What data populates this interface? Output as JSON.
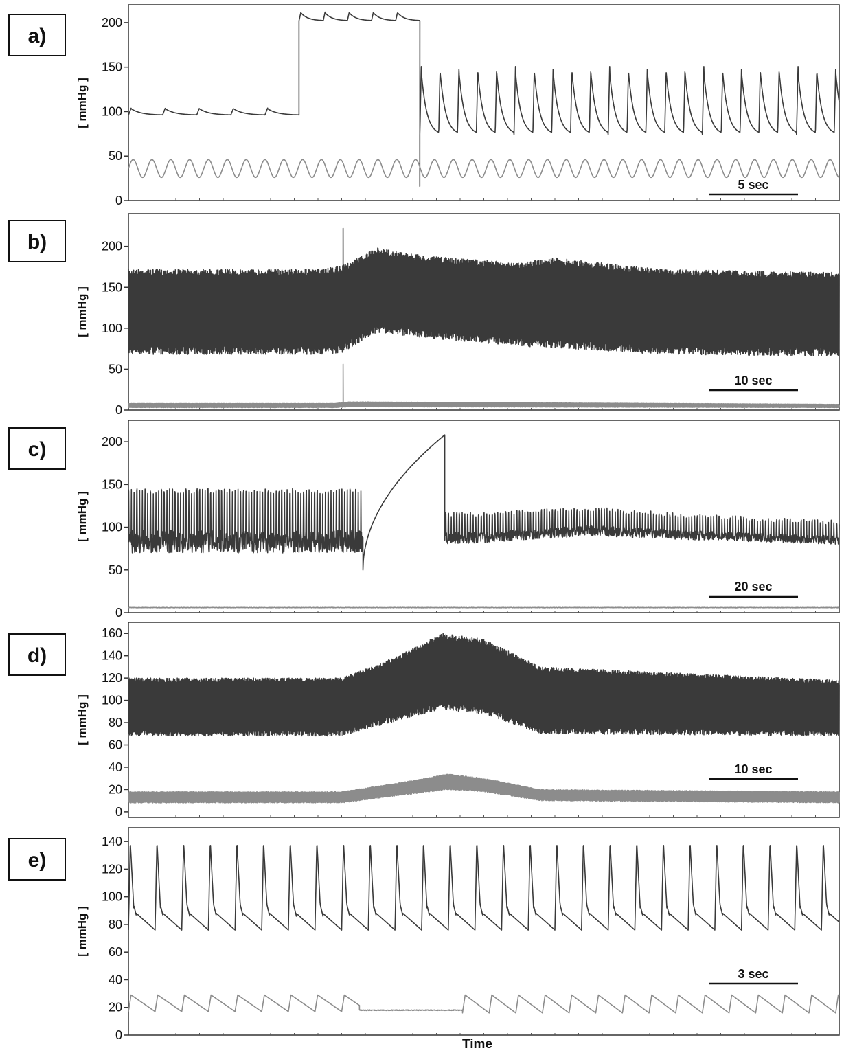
{
  "chart_data": [
    {
      "type": "line",
      "panel": "a)",
      "ylabel": "[ mmHg ]",
      "ylim": [
        0,
        220
      ],
      "yticks": [
        0,
        50,
        100,
        150,
        200
      ],
      "scale_bar": "5 sec",
      "series": [
        {
          "role": "upper",
          "color": "#3a3a3a",
          "segments": [
            {
              "kind": "pulse",
              "x": [
                0,
                0.24
              ],
              "base": 96,
              "peak": 104,
              "period": 0.048
            },
            {
              "kind": "step",
              "x": [
                0.24,
                0.41
              ],
              "base": 202,
              "peak": 212,
              "period": 0.034
            },
            {
              "kind": "drop",
              "x": 0.41,
              "min": 16
            },
            {
              "kind": "pulse",
              "x": [
                0.41,
                1.0
              ],
              "base": 74,
              "peak": 152,
              "period": 0.0265
            }
          ]
        },
        {
          "role": "lower",
          "color": "#8c8c8c",
          "segments": [
            {
              "kind": "wave",
              "x": [
                0,
                1.0
              ],
              "base": 26,
              "peak": 46,
              "period": 0.0265
            }
          ]
        }
      ]
    },
    {
      "type": "line",
      "panel": "b)",
      "ylabel": "[ mmHg ]",
      "ylim": [
        0,
        240
      ],
      "yticks": [
        0,
        50,
        100,
        150,
        200
      ],
      "scale_bar": "10 sec",
      "series": [
        {
          "role": "upper",
          "color": "#3a3a3a",
          "envelope": {
            "x": [
              0,
              0.27,
              0.3,
              0.35,
              0.42,
              0.55,
              0.6,
              0.75,
              1.0
            ],
            "top": [
              172,
              172,
              176,
              198,
              188,
              180,
              186,
              172,
              168
            ],
            "bottom": [
              68,
              68,
              70,
              95,
              88,
              78,
              76,
              68,
              66
            ]
          },
          "spike": {
            "x": 0.302,
            "max": 222
          }
        },
        {
          "role": "lower",
          "color": "#8c8c8c",
          "envelope": {
            "x": [
              0,
              0.29,
              0.31,
              1.0
            ],
            "top": [
              8,
              8,
              10,
              7
            ],
            "bottom": [
              3,
              3,
              4,
              3
            ]
          },
          "spike": {
            "x": 0.302,
            "max": 56
          }
        }
      ]
    },
    {
      "type": "line",
      "panel": "c)",
      "ylabel": "[ mmHg ]",
      "ylim": [
        0,
        225
      ],
      "yticks": [
        0,
        50,
        100,
        150,
        200
      ],
      "scale_bar": "20 sec",
      "series": [
        {
          "role": "upper",
          "color": "#3a3a3a",
          "segments": [
            {
              "kind": "band",
              "x": [
                0,
                0.33
              ],
              "top": 145,
              "bottom": 70
            },
            {
              "kind": "curve",
              "x": [
                0.33,
                0.445
              ],
              "from": 50,
              "to": 208
            },
            {
              "kind": "drop",
              "x": 0.445,
              "min": 85
            },
            {
              "kind": "band_env",
              "x": [
                0.445,
                1.0
              ],
              "env_x": [
                0.445,
                0.5,
                0.65,
                0.8,
                1.0
              ],
              "top": [
                118,
                118,
                124,
                115,
                108
              ],
              "bottom": [
                80,
                82,
                90,
                85,
                80
              ]
            }
          ]
        },
        {
          "role": "lower",
          "color": "#8c8c8c",
          "segments": [
            {
              "kind": "flat",
              "x": [
                0,
                1.0
              ],
              "value": 6
            }
          ]
        }
      ]
    },
    {
      "type": "line",
      "panel": "d)",
      "ylabel": "[ mmHg ]",
      "ylim": [
        -5,
        170
      ],
      "yticks": [
        0,
        20,
        40,
        60,
        80,
        100,
        120,
        140,
        160
      ],
      "scale_bar": "10 sec",
      "series": [
        {
          "role": "upper",
          "color": "#3a3a3a",
          "envelope": {
            "x": [
              0,
              0.3,
              0.38,
              0.44,
              0.5,
              0.58,
              1.0
            ],
            "top": [
              120,
              120,
              140,
              160,
              155,
              130,
              118
            ],
            "bottom": [
              68,
              68,
              82,
              92,
              88,
              70,
              68
            ]
          }
        },
        {
          "role": "lower",
          "color": "#8c8c8c",
          "envelope": {
            "x": [
              0,
              0.3,
              0.4,
              0.45,
              0.5,
              0.58,
              1.0
            ],
            "top": [
              18,
              18,
              28,
              34,
              30,
              20,
              18
            ],
            "bottom": [
              8,
              8,
              16,
              20,
              18,
              10,
              8
            ]
          }
        }
      ]
    },
    {
      "type": "line",
      "panel": "e)",
      "ylabel": "[ mmHg ]",
      "ylim": [
        0,
        150
      ],
      "yticks": [
        0,
        20,
        40,
        60,
        80,
        100,
        120,
        140
      ],
      "scale_bar": "3 sec",
      "xlabel": "Time",
      "series": [
        {
          "role": "upper",
          "color": "#3a3a3a",
          "segments": [
            {
              "kind": "pulse_art",
              "x": [
                0,
                1.0
              ],
              "base": 76,
              "peak": 140,
              "period": 0.0375
            }
          ]
        },
        {
          "role": "lower",
          "color": "#8c8c8c",
          "segments": [
            {
              "kind": "saw",
              "x": [
                0,
                0.325
              ],
              "base": 17,
              "peak": 29,
              "period": 0.0375
            },
            {
              "kind": "flat",
              "x": [
                0.325,
                0.47
              ],
              "value": 18
            },
            {
              "kind": "saw",
              "x": [
                0.47,
                1.0
              ],
              "base": 16,
              "peak": 29,
              "period": 0.0375
            }
          ]
        }
      ]
    }
  ]
}
